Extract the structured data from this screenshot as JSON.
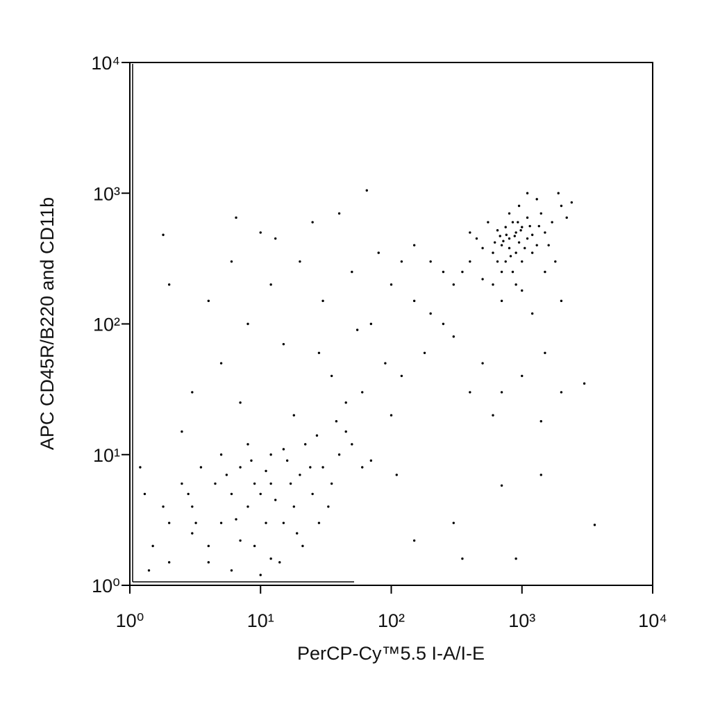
{
  "chart_data": {
    "type": "scatter",
    "xlabel": "PerCP-Cy™5.5 I-A/I-E",
    "ylabel": "APC CD45R/B220 and CD11b",
    "xscale": "log",
    "yscale": "log",
    "color": "#000000",
    "xlim": [
      1,
      10000
    ],
    "ylim": [
      1,
      10000
    ],
    "xticks": [
      {
        "value": 1,
        "label": "10⁰"
      },
      {
        "value": 10,
        "label": "10¹"
      },
      {
        "value": 100,
        "label": "10²"
      },
      {
        "value": 1000,
        "label": "10³"
      },
      {
        "value": 10000,
        "label": "10⁴"
      }
    ],
    "yticks": [
      {
        "value": 1,
        "label": "10⁰"
      },
      {
        "value": 10,
        "label": "10¹"
      },
      {
        "value": 100,
        "label": "10²"
      },
      {
        "value": 1000,
        "label": "10³"
      },
      {
        "value": 10000,
        "label": "10⁴"
      }
    ],
    "x": [
      800,
      900,
      700,
      1000,
      600,
      1200,
      850,
      750,
      950,
      1100,
      650,
      500,
      1300,
      700,
      900,
      1500,
      400,
      550,
      1000,
      800,
      1200,
      1700,
      450,
      600,
      850,
      1400,
      2000,
      350,
      750,
      950,
      1100,
      650,
      1600,
      1800,
      500,
      1300,
      2200,
      900,
      700,
      1000,
      1200,
      1500,
      2000,
      300,
      400,
      1100,
      1900,
      2400,
      800,
      880,
      720,
      980,
      1050,
      620,
      1350,
      760,
      820,
      930,
      680,
      1150,
      10,
      8,
      12,
      15,
      6,
      5,
      20,
      25,
      3,
      4,
      7,
      9,
      11,
      18,
      30,
      35,
      2,
      2.5,
      1.5,
      1.3,
      3.5,
      5,
      8,
      12,
      16,
      22,
      40,
      45,
      28,
      14,
      6,
      10,
      4,
      2,
      1.4,
      3,
      7,
      9,
      13,
      17,
      24,
      33,
      50,
      60,
      70,
      19,
      11,
      6.5,
      4.5,
      2.8,
      1.8,
      1.2,
      3.2,
      8.5,
      15,
      27,
      38,
      21,
      12,
      5.5,
      3,
      5,
      8,
      12,
      20,
      30,
      50,
      70,
      100,
      150,
      200,
      250,
      4,
      6,
      2,
      10,
      25,
      40,
      15,
      35,
      60,
      90,
      120,
      180,
      300,
      500,
      700,
      1000,
      1500,
      2000,
      3000,
      100,
      45,
      18,
      7,
      2.5,
      1.8,
      6.5,
      13,
      65,
      400,
      600,
      1400,
      80,
      150,
      250,
      120,
      55,
      28,
      200,
      700,
      1400,
      3600,
      300,
      900,
      350,
      110,
      150
    ],
    "y": [
      450,
      500,
      400,
      550,
      350,
      480,
      600,
      300,
      420,
      650,
      520,
      380,
      400,
      250,
      350,
      500,
      300,
      600,
      300,
      700,
      350,
      600,
      450,
      200,
      250,
      700,
      800,
      250,
      550,
      800,
      450,
      300,
      400,
      300,
      220,
      900,
      650,
      200,
      150,
      180,
      120,
      250,
      150,
      200,
      500,
      1000,
      1000,
      850,
      380,
      470,
      430,
      520,
      380,
      420,
      560,
      480,
      330,
      600,
      470,
      560,
      5,
      4,
      6,
      3,
      5,
      3,
      7,
      5,
      4,
      2,
      8,
      2,
      3,
      4,
      8,
      6,
      3,
      6,
      2,
      5,
      8,
      10,
      12,
      10,
      9,
      12,
      10,
      15,
      3,
      1.5,
      1.3,
      1.2,
      1.5,
      1.5,
      1.3,
      2.5,
      2.2,
      6,
      4.5,
      6,
      8,
      4,
      12,
      8,
      9,
      2.5,
      7.5,
      3.2,
      6,
      5,
      4,
      8,
      3,
      9,
      11,
      14,
      18,
      2,
      1.6,
      7,
      30,
      50,
      100,
      200,
      300,
      150,
      250,
      100,
      200,
      150,
      300,
      100,
      150,
      300,
      200,
      500,
      600,
      700,
      70,
      40,
      30,
      50,
      40,
      60,
      80,
      50,
      30,
      40,
      60,
      30,
      35,
      20,
      25,
      20,
      25,
      15,
      480,
      650,
      450,
      1050,
      30,
      20,
      18,
      350,
      400,
      250,
      300,
      90,
      60,
      120,
      5.8,
      7,
      2.9,
      3,
      1.6,
      1.6,
      7,
      2.2
    ]
  }
}
